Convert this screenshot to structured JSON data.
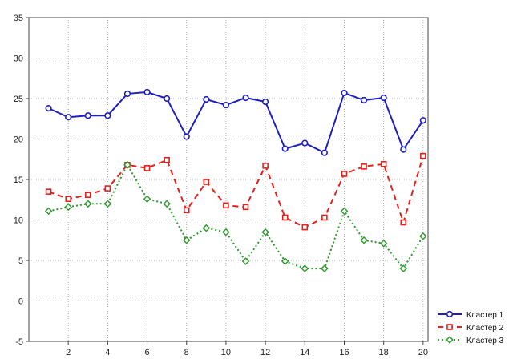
{
  "chart_data": {
    "type": "line",
    "title": "",
    "xlabel": "",
    "ylabel": "",
    "x": [
      1,
      2,
      3,
      4,
      5,
      6,
      7,
      8,
      9,
      10,
      11,
      12,
      13,
      14,
      15,
      16,
      17,
      18,
      19,
      20
    ],
    "xlim": [
      0,
      20.25
    ],
    "ylim": [
      -5,
      35
    ],
    "x_tick_labels": [
      "2",
      "4",
      "6",
      "8",
      "10",
      "12",
      "14",
      "16",
      "18",
      "20"
    ],
    "y_tick_labels": [
      "-5",
      "0",
      "5",
      "10",
      "15",
      "20",
      "25",
      "30",
      "35"
    ],
    "grid": true,
    "legend_position": "bottom-right",
    "series": [
      {
        "name": "Кластер  1",
        "color": "#1f1fbf",
        "line_style": "solid",
        "marker": "circle",
        "values": [
          23.8,
          22.7,
          22.9,
          22.9,
          25.6,
          25.8,
          25.0,
          20.3,
          24.9,
          24.2,
          25.1,
          24.6,
          18.8,
          19.5,
          18.3,
          25.7,
          24.8,
          25.1,
          18.7,
          22.3
        ]
      },
      {
        "name": "Кластер  2",
        "color": "#e8201c",
        "line_style": "dashed",
        "marker": "square",
        "values": [
          13.5,
          12.6,
          13.1,
          13.9,
          16.8,
          16.4,
          17.4,
          11.2,
          14.7,
          11.8,
          11.6,
          16.7,
          10.3,
          9.1,
          10.3,
          15.7,
          16.6,
          16.9,
          9.7,
          17.9
        ]
      },
      {
        "name": "Кластер  3",
        "color": "#2b9a2b",
        "line_style": "dotted",
        "marker": "diamond",
        "values": [
          11.1,
          11.6,
          12.0,
          12.0,
          16.8,
          12.6,
          12.0,
          7.5,
          9.0,
          8.5,
          4.9,
          8.5,
          4.9,
          4.0,
          4.0,
          11.1,
          7.5,
          7.1,
          4.0,
          8.0
        ]
      }
    ]
  }
}
